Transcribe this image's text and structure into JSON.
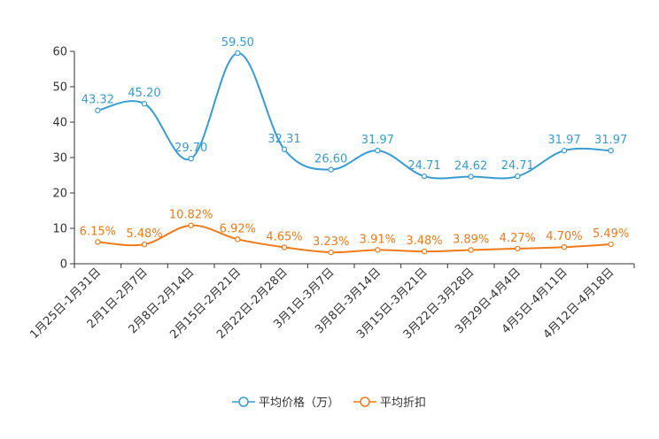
{
  "chart_data": {
    "type": "line",
    "title": "",
    "xlabel": "",
    "ylabel": "",
    "ylim": [
      0,
      60
    ],
    "yticks": [
      0,
      10,
      20,
      30,
      40,
      50,
      60
    ],
    "grid": false,
    "legend_position": "bottom-center",
    "categories": [
      "1月25日-1月31日",
      "2月1日-2月7日",
      "2月8日-2月14日",
      "2月15日-2月21日",
      "2月22日-2月28日",
      "3月1日-3月7日",
      "3月8日-3月14日",
      "3月15日-3月21日",
      "3月22日-3月28日",
      "3月29日-4月4日",
      "4月5日-4月11日",
      "4月12日-4月18日"
    ],
    "series": [
      {
        "name": "平均价格（万）",
        "color": "#3a9bd1",
        "values": [
          43.32,
          45.2,
          29.7,
          59.5,
          32.31,
          26.6,
          31.97,
          24.71,
          24.62,
          24.71,
          31.97,
          31.97
        ],
        "labels": [
          "43.32",
          "45.20",
          "29.70",
          "59.50",
          "32.31",
          "26.60",
          "31.97",
          "24.71",
          "24.62",
          "24.71",
          "31.97",
          "31.97"
        ]
      },
      {
        "name": "平均折扣",
        "color": "#f07a1a",
        "values": [
          6.15,
          5.48,
          10.82,
          6.92,
          4.65,
          3.23,
          3.91,
          3.48,
          3.89,
          4.27,
          4.7,
          5.49
        ],
        "labels": [
          "6.15%",
          "5.48%",
          "10.82%",
          "6.92%",
          "4.65%",
          "3.23%",
          "3.91%",
          "3.48%",
          "3.89%",
          "4.27%",
          "4.70%",
          "5.49%"
        ]
      }
    ]
  }
}
